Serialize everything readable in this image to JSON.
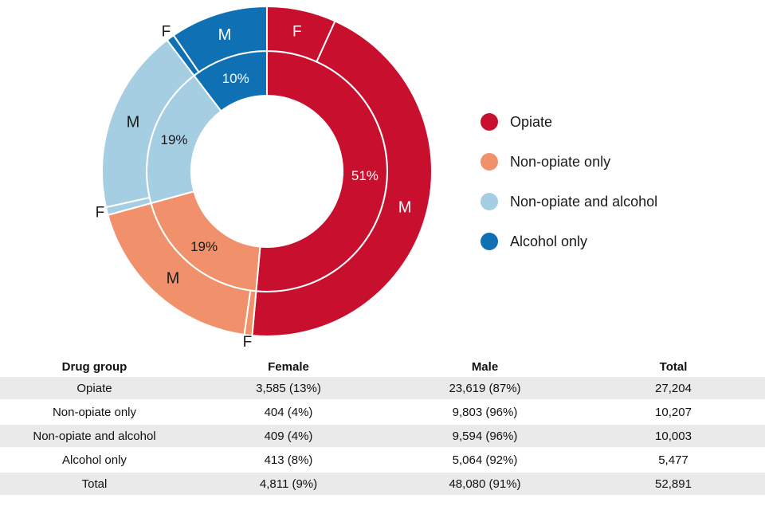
{
  "chart_data": {
    "type": "donut",
    "title": "",
    "legend_position": "right",
    "inner_ring": "drug group share of total",
    "outer_ring": "sex split within each drug group, female then male, clockwise from top",
    "start_angle_deg": 0,
    "direction": "clockwise",
    "outside_label_color": "#1a1a1a",
    "sex_labels": {
      "male": "M",
      "female": "F"
    },
    "groups": [
      {
        "label": "Opiate",
        "color": "#c8102e",
        "total": 27204,
        "female": 3585,
        "male": 23619,
        "share_label": "51%",
        "female_pct": "13%",
        "male_pct": "87%",
        "pct_label_color": "#ffffff",
        "sex_label_color": "#ffffff",
        "female_label_inside": true
      },
      {
        "label": "Non-opiate only",
        "color": "#f0916c",
        "total": 10207,
        "female": 404,
        "male": 9803,
        "share_label": "19%",
        "female_pct": "4%",
        "male_pct": "96%",
        "pct_label_color": "#1a1a1a",
        "sex_label_color": "#1a1a1a",
        "female_label_inside": false
      },
      {
        "label": "Non-opiate and alcohol",
        "color": "#a6cee3",
        "total": 10003,
        "female": 409,
        "male": 9594,
        "share_label": "19%",
        "female_pct": "4%",
        "male_pct": "96%",
        "pct_label_color": "#1a1a1a",
        "sex_label_color": "#1a1a1a",
        "female_label_inside": false
      },
      {
        "label": "Alcohol only",
        "color": "#1070b4",
        "total": 5477,
        "female": 413,
        "male": 5064,
        "share_label": "10%",
        "female_pct": "8%",
        "male_pct": "92%",
        "pct_label_color": "#ffffff",
        "sex_label_color": "#ffffff",
        "female_label_inside": false
      }
    ]
  },
  "legend": {
    "items": [
      {
        "label": "Opiate",
        "color": "#c8102e"
      },
      {
        "label": "Non-opiate only",
        "color": "#f0916c"
      },
      {
        "label": "Non-opiate and alcohol",
        "color": "#a6cee3"
      },
      {
        "label": "Alcohol only",
        "color": "#1070b4"
      }
    ]
  },
  "table": {
    "headers": [
      "Drug group",
      "Female",
      "Male",
      "Total"
    ],
    "rows": [
      {
        "cells": [
          "Opiate",
          "3,585 (13%)",
          "23,619 (87%)",
          "27,204"
        ]
      },
      {
        "cells": [
          "Non-opiate only",
          "404 (4%)",
          "9,803 (96%)",
          "10,207"
        ]
      },
      {
        "cells": [
          "Non-opiate and alcohol",
          "409 (4%)",
          "9,594 (96%)",
          "10,003"
        ]
      },
      {
        "cells": [
          "Alcohol only",
          "413 (8%)",
          "5,064 (92%)",
          "5,477"
        ]
      },
      {
        "cells": [
          "Total",
          "4,811 (9%)",
          "48,080 (91%)",
          "52,891"
        ]
      }
    ]
  }
}
